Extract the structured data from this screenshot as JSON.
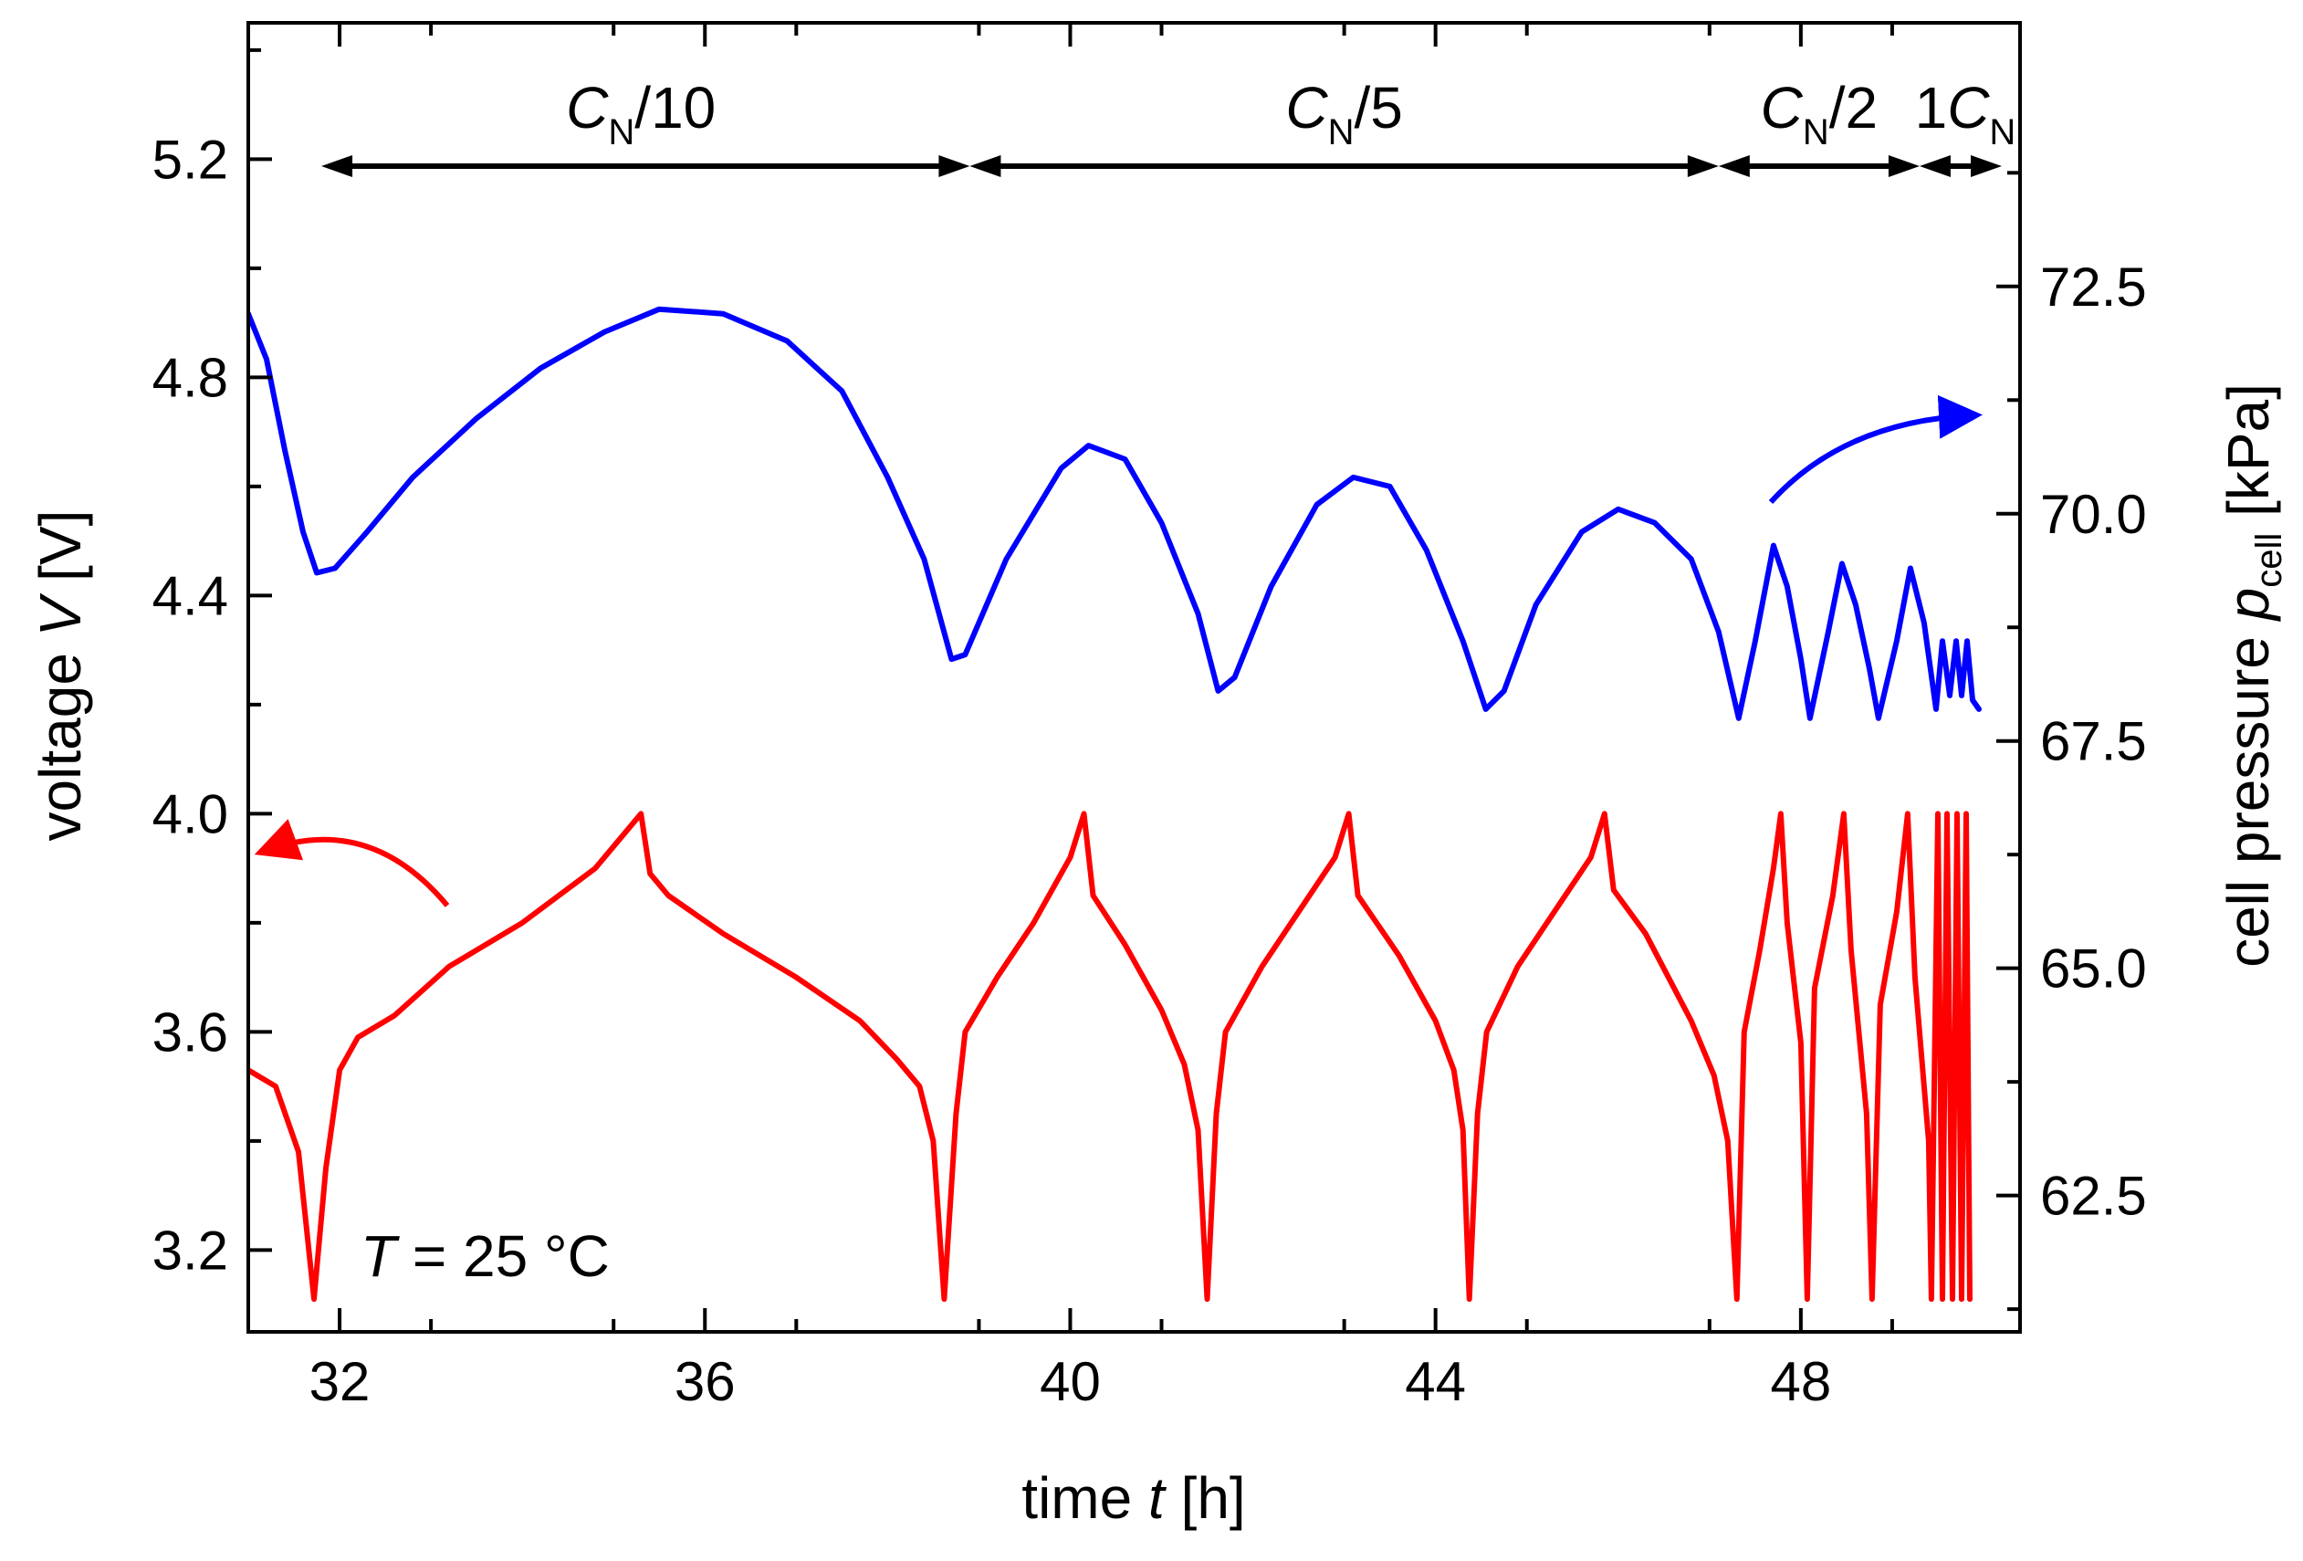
{
  "chart_data": {
    "type": "line",
    "title": "",
    "xlabel": {
      "prefix": "time ",
      "symbol": "t",
      "suffix": " [h]"
    },
    "ylabel_left": {
      "prefix": "voltage ",
      "symbol": "V",
      "suffix": " [V]"
    },
    "ylabel_right": {
      "prefix": "cell pressure ",
      "symbol": "p",
      "subscript": "cell",
      "suffix": " [kPa]"
    },
    "xlim": [
      31,
      50.4
    ],
    "ylim_left": [
      3.05,
      5.45
    ],
    "ylim_right": [
      61.0,
      75.4
    ],
    "x_ticks": [
      32,
      36,
      40,
      44,
      48
    ],
    "x_tick_labels": [
      "32",
      "36",
      "40",
      "44",
      "48"
    ],
    "y_left_ticks": [
      3.2,
      3.6,
      4.0,
      4.4,
      4.8,
      5.2
    ],
    "y_left_tick_labels": [
      "3.2",
      "3.6",
      "4.0",
      "4.4",
      "4.8",
      "5.2"
    ],
    "y_right_ticks": [
      62.5,
      65.0,
      67.5,
      70.0,
      72.5
    ],
    "y_right_tick_labels": [
      "62.5",
      "65.0",
      "67.5",
      "70.0",
      "72.5"
    ],
    "annotation": {
      "symbol": "T",
      "text": " = 25 °C"
    },
    "rate_spans": [
      {
        "main": "C",
        "sub": "N",
        "rest": "/10",
        "pre": "",
        "start": 31.8,
        "end": 38.9,
        "label_x": 35.3
      },
      {
        "main": "C",
        "sub": "N",
        "rest": "/5",
        "pre": "",
        "start": 38.9,
        "end": 47.1,
        "label_x": 43.0
      },
      {
        "main": "C",
        "sub": "N",
        "rest": "/2",
        "pre": "",
        "start": 47.1,
        "end": 49.3,
        "label_x": 48.2
      },
      {
        "main": "C",
        "sub": "N",
        "rest": "",
        "pre": "1",
        "start": 49.3,
        "end": 50.2,
        "label_x": 49.8
      }
    ],
    "series": [
      {
        "name": "voltage",
        "axis": "left",
        "color": "#ff0000",
        "points": [
          [
            31.0,
            3.53
          ],
          [
            31.3,
            3.5
          ],
          [
            31.55,
            3.38
          ],
          [
            31.72,
            3.11
          ],
          [
            31.85,
            3.35
          ],
          [
            32.0,
            3.53
          ],
          [
            32.2,
            3.59
          ],
          [
            32.6,
            3.63
          ],
          [
            33.2,
            3.72
          ],
          [
            34.0,
            3.8
          ],
          [
            34.8,
            3.9
          ],
          [
            35.3,
            4.0
          ],
          [
            35.4,
            3.89
          ],
          [
            35.6,
            3.85
          ],
          [
            36.2,
            3.78
          ],
          [
            37.0,
            3.7
          ],
          [
            37.7,
            3.62
          ],
          [
            38.1,
            3.55
          ],
          [
            38.35,
            3.5
          ],
          [
            38.5,
            3.4
          ],
          [
            38.62,
            3.11
          ],
          [
            38.75,
            3.45
          ],
          [
            38.85,
            3.6
          ],
          [
            39.2,
            3.7
          ],
          [
            39.6,
            3.8
          ],
          [
            40.0,
            3.92
          ],
          [
            40.15,
            4.0
          ],
          [
            40.25,
            3.85
          ],
          [
            40.6,
            3.76
          ],
          [
            41.0,
            3.64
          ],
          [
            41.25,
            3.54
          ],
          [
            41.4,
            3.42
          ],
          [
            41.5,
            3.11
          ],
          [
            41.6,
            3.45
          ],
          [
            41.7,
            3.6
          ],
          [
            42.1,
            3.72
          ],
          [
            42.5,
            3.82
          ],
          [
            42.9,
            3.92
          ],
          [
            43.05,
            4.0
          ],
          [
            43.15,
            3.85
          ],
          [
            43.6,
            3.74
          ],
          [
            44.0,
            3.62
          ],
          [
            44.2,
            3.53
          ],
          [
            44.3,
            3.42
          ],
          [
            44.37,
            3.11
          ],
          [
            44.46,
            3.45
          ],
          [
            44.56,
            3.6
          ],
          [
            44.9,
            3.72
          ],
          [
            45.3,
            3.82
          ],
          [
            45.7,
            3.92
          ],
          [
            45.85,
            4.0
          ],
          [
            45.95,
            3.86
          ],
          [
            46.3,
            3.78
          ],
          [
            46.8,
            3.62
          ],
          [
            47.05,
            3.52
          ],
          [
            47.2,
            3.4
          ],
          [
            47.3,
            3.11
          ],
          [
            47.38,
            3.6
          ],
          [
            47.55,
            3.75
          ],
          [
            47.7,
            3.9
          ],
          [
            47.78,
            4.0
          ],
          [
            47.85,
            3.8
          ],
          [
            48.0,
            3.58
          ],
          [
            48.07,
            3.11
          ],
          [
            48.15,
            3.68
          ],
          [
            48.35,
            3.85
          ],
          [
            48.47,
            4.0
          ],
          [
            48.55,
            3.75
          ],
          [
            48.72,
            3.45
          ],
          [
            48.78,
            3.11
          ],
          [
            48.87,
            3.65
          ],
          [
            49.05,
            3.82
          ],
          [
            49.17,
            4.0
          ],
          [
            49.25,
            3.7
          ],
          [
            49.4,
            3.4
          ],
          [
            49.43,
            3.11
          ],
          [
            49.5,
            4.0
          ],
          [
            49.55,
            3.11
          ],
          [
            49.6,
            4.0
          ],
          [
            49.66,
            3.11
          ],
          [
            49.71,
            4.0
          ],
          [
            49.76,
            3.11
          ],
          [
            49.81,
            4.0
          ],
          [
            49.85,
            3.11
          ]
        ]
      },
      {
        "name": "cell pressure",
        "axis": "right",
        "color": "#0000ff",
        "points": [
          [
            31.0,
            72.2
          ],
          [
            31.2,
            71.7
          ],
          [
            31.4,
            70.7
          ],
          [
            31.6,
            69.8
          ],
          [
            31.75,
            69.35
          ],
          [
            31.95,
            69.4
          ],
          [
            32.3,
            69.8
          ],
          [
            32.8,
            70.4
          ],
          [
            33.5,
            71.05
          ],
          [
            34.2,
            71.6
          ],
          [
            34.9,
            72.0
          ],
          [
            35.5,
            72.25
          ],
          [
            36.2,
            72.2
          ],
          [
            36.9,
            71.9
          ],
          [
            37.5,
            71.35
          ],
          [
            38.0,
            70.4
          ],
          [
            38.4,
            69.5
          ],
          [
            38.7,
            68.4
          ],
          [
            38.85,
            68.45
          ],
          [
            39.3,
            69.5
          ],
          [
            39.9,
            70.5
          ],
          [
            40.2,
            70.75
          ],
          [
            40.6,
            70.6
          ],
          [
            41.0,
            69.9
          ],
          [
            41.4,
            68.9
          ],
          [
            41.62,
            68.05
          ],
          [
            41.8,
            68.2
          ],
          [
            42.2,
            69.2
          ],
          [
            42.7,
            70.1
          ],
          [
            43.1,
            70.4
          ],
          [
            43.5,
            70.3
          ],
          [
            43.9,
            69.6
          ],
          [
            44.3,
            68.6
          ],
          [
            44.55,
            67.85
          ],
          [
            44.75,
            68.05
          ],
          [
            45.1,
            69.0
          ],
          [
            45.6,
            69.8
          ],
          [
            46.0,
            70.05
          ],
          [
            46.4,
            69.9
          ],
          [
            46.8,
            69.5
          ],
          [
            47.1,
            68.7
          ],
          [
            47.32,
            67.75
          ],
          [
            47.5,
            68.6
          ],
          [
            47.7,
            69.65
          ],
          [
            47.85,
            69.2
          ],
          [
            48.0,
            68.4
          ],
          [
            48.1,
            67.75
          ],
          [
            48.3,
            68.7
          ],
          [
            48.45,
            69.45
          ],
          [
            48.6,
            69.0
          ],
          [
            48.75,
            68.3
          ],
          [
            48.85,
            67.75
          ],
          [
            49.05,
            68.6
          ],
          [
            49.2,
            69.4
          ],
          [
            49.35,
            68.8
          ],
          [
            49.48,
            67.85
          ],
          [
            49.55,
            68.6
          ],
          [
            49.63,
            68.0
          ],
          [
            49.7,
            68.6
          ],
          [
            49.76,
            68.0
          ],
          [
            49.82,
            68.6
          ],
          [
            49.88,
            67.95
          ],
          [
            49.95,
            67.85
          ]
        ]
      }
    ]
  }
}
